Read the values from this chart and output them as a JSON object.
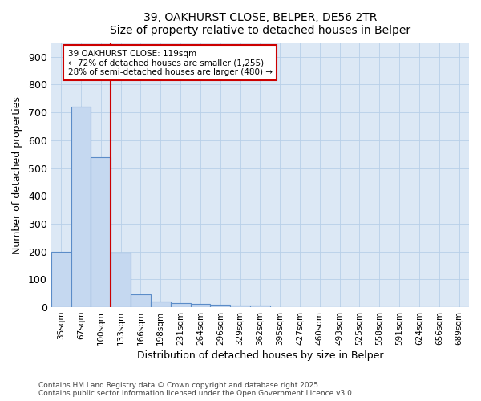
{
  "title": "39, OAKHURST CLOSE, BELPER, DE56 2TR",
  "subtitle": "Size of property relative to detached houses in Belper",
  "xlabel": "Distribution of detached houses by size in Belper",
  "ylabel": "Number of detached properties",
  "categories": [
    "35sqm",
    "67sqm",
    "100sqm",
    "133sqm",
    "166sqm",
    "198sqm",
    "231sqm",
    "264sqm",
    "296sqm",
    "329sqm",
    "362sqm",
    "395sqm",
    "427sqm",
    "460sqm",
    "493sqm",
    "525sqm",
    "558sqm",
    "591sqm",
    "624sqm",
    "656sqm",
    "689sqm"
  ],
  "values": [
    200,
    720,
    540,
    195,
    47,
    20,
    15,
    12,
    8,
    7,
    7,
    0,
    0,
    0,
    0,
    0,
    0,
    0,
    0,
    0,
    0
  ],
  "bar_color": "#c5d8f0",
  "bar_edge_color": "#5b8cc8",
  "vline_color": "#cc0000",
  "annotation_line1": "39 OAKHURST CLOSE: 119sqm",
  "annotation_line2": "← 72% of detached houses are smaller (1,255)",
  "annotation_line3": "28% of semi-detached houses are larger (480) →",
  "annotation_box_color": "#ffffff",
  "annotation_box_edge": "#cc0000",
  "ylim": [
    0,
    950
  ],
  "yticks": [
    0,
    100,
    200,
    300,
    400,
    500,
    600,
    700,
    800,
    900
  ],
  "footer1": "Contains HM Land Registry data © Crown copyright and database right 2025.",
  "footer2": "Contains public sector information licensed under the Open Government Licence v3.0.",
  "bg_color": "#ffffff",
  "plot_bg": "#dce8f5",
  "grid_color": "#b8cfe8",
  "vline_x_index": 2.58
}
